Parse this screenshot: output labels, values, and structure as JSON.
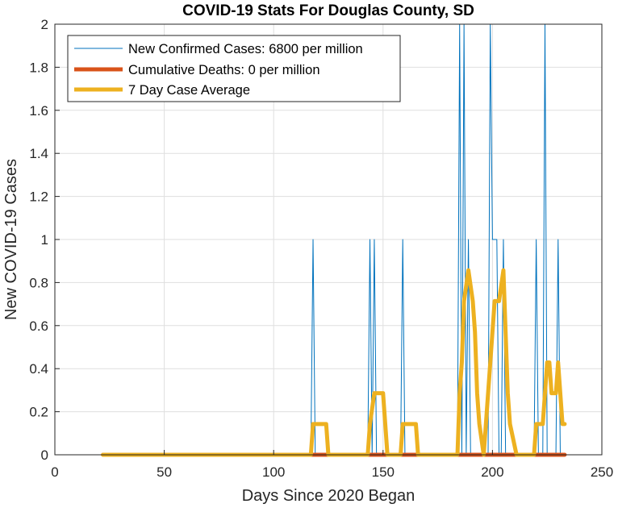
{
  "chart_data": {
    "type": "line",
    "title": "COVID-19 Stats For Douglas County, SD",
    "xlabel": "Days Since 2020 Began",
    "ylabel": "New COVID-19 Cases",
    "xlim": [
      0,
      250
    ],
    "ylim": [
      0,
      2
    ],
    "xticks": [
      0,
      50,
      100,
      150,
      200,
      250
    ],
    "yticks": [
      0,
      0.2,
      0.4,
      0.6,
      0.8,
      1,
      1.2,
      1.4,
      1.6,
      1.8,
      2
    ],
    "ytick_labels": [
      "0",
      "0.2",
      "0.4",
      "0.6",
      "0.8",
      "1",
      "1.2",
      "1.4",
      "1.6",
      "1.8",
      "2"
    ],
    "grid": true,
    "legend_position": "top-left",
    "series": [
      {
        "name": "New Confirmed Cases: 6800 per million",
        "color": "#0072BD",
        "line": "thin",
        "points": [
          [
            22,
            0
          ],
          [
            117,
            0
          ],
          [
            118,
            1
          ],
          [
            119,
            0
          ],
          [
            143,
            0
          ],
          [
            144,
            1
          ],
          [
            145,
            0
          ],
          [
            146,
            1
          ],
          [
            147,
            0
          ],
          [
            158,
            0
          ],
          [
            159,
            1
          ],
          [
            160,
            0
          ],
          [
            184,
            0
          ],
          [
            185,
            2
          ],
          [
            186,
            0
          ],
          [
            187,
            2
          ],
          [
            188,
            0
          ],
          [
            189,
            1
          ],
          [
            190,
            0
          ],
          [
            198,
            0
          ],
          [
            199,
            2
          ],
          [
            200,
            1
          ],
          [
            201,
            1
          ],
          [
            202,
            1
          ],
          [
            203,
            0
          ],
          [
            204,
            0
          ],
          [
            205,
            1
          ],
          [
            206,
            0
          ],
          [
            219,
            0
          ],
          [
            220,
            1
          ],
          [
            221,
            0
          ],
          [
            223,
            0
          ],
          [
            224,
            2
          ],
          [
            225,
            0
          ],
          [
            229,
            0
          ],
          [
            230,
            1
          ],
          [
            231,
            0
          ],
          [
            233,
            0
          ]
        ]
      },
      {
        "name": "Cumulative Deaths: 0 per million",
        "color": "#D95319",
        "line": "thick",
        "points": [
          [
            22,
            0
          ],
          [
            233,
            0
          ]
        ]
      },
      {
        "name": "7 Day Case Average",
        "color": "#EDB120",
        "line": "thick",
        "points": [
          [
            22,
            0
          ],
          [
            117,
            0
          ],
          [
            118,
            0.143
          ],
          [
            124,
            0.143
          ],
          [
            125,
            0
          ],
          [
            143,
            0
          ],
          [
            144,
            0.143
          ],
          [
            146,
            0.286
          ],
          [
            150,
            0.286
          ],
          [
            151,
            0.143
          ],
          [
            152,
            0
          ],
          [
            158,
            0
          ],
          [
            159,
            0.143
          ],
          [
            165,
            0.143
          ],
          [
            166,
            0
          ],
          [
            184,
            0
          ],
          [
            185,
            0.286
          ],
          [
            186,
            0.429
          ],
          [
            187,
            0.714
          ],
          [
            189,
            0.857
          ],
          [
            191,
            0.714
          ],
          [
            192,
            0.571
          ],
          [
            193,
            0.286
          ],
          [
            194,
            0.143
          ],
          [
            196,
            0
          ],
          [
            198,
            0.286
          ],
          [
            200,
            0.571
          ],
          [
            201,
            0.714
          ],
          [
            203,
            0.714
          ],
          [
            205,
            0.857
          ],
          [
            206,
            0.571
          ],
          [
            207,
            0.286
          ],
          [
            208,
            0.143
          ],
          [
            211,
            0
          ],
          [
            219,
            0
          ],
          [
            220,
            0.143
          ],
          [
            223,
            0.143
          ],
          [
            224,
            0.286
          ],
          [
            225,
            0.429
          ],
          [
            226,
            0.429
          ],
          [
            227,
            0.286
          ],
          [
            229,
            0.286
          ],
          [
            230,
            0.429
          ],
          [
            231,
            0.286
          ],
          [
            232,
            0.143
          ],
          [
            233,
            0.143
          ]
        ]
      }
    ]
  }
}
